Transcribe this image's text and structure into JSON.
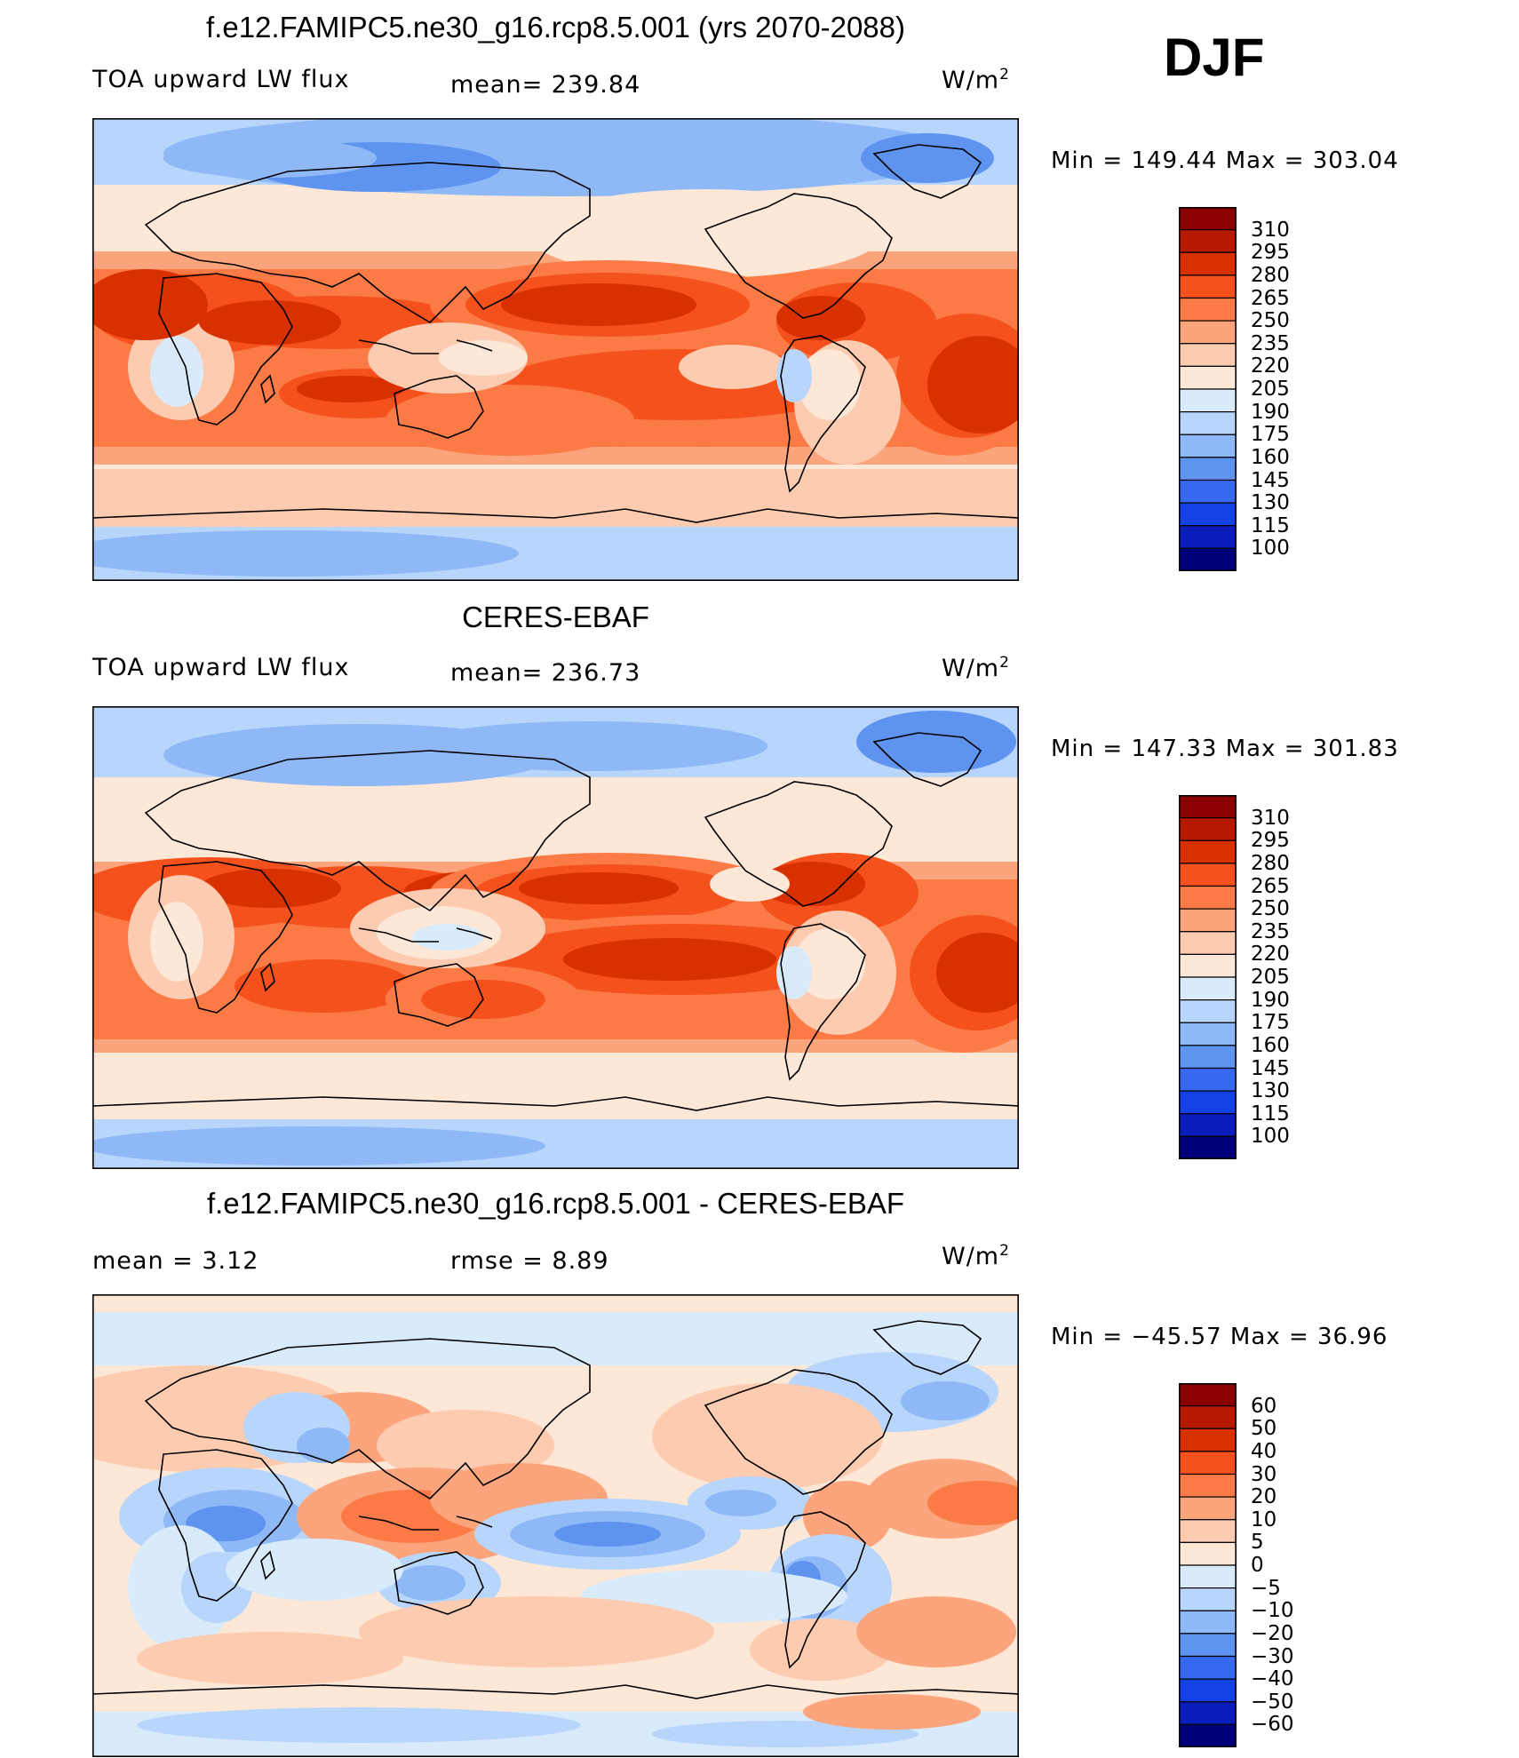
{
  "season": "DJF",
  "panels": [
    {
      "title": "f.e12.FAMIPC5.ne30_g16.rcp8.5.001 (yrs 2070-2088)",
      "left_label": "TOA upward LW flux",
      "center_label": "mean=  239.84",
      "units_base": "W/m",
      "units_exp": "2",
      "minmax": "Min  =  149.44  Max  =  303.04"
    },
    {
      "title": "CERES-EBAF",
      "left_label": "TOA upward LW flux",
      "center_label": "mean=  236.73",
      "units_base": "W/m",
      "units_exp": "2",
      "minmax": "Min  =  147.33  Max  =  301.83"
    },
    {
      "title": "f.e12.FAMIPC5.ne30_g16.rcp8.5.001 - CERES-EBAF",
      "left_label": "mean  =     3.12",
      "center_label": "rmse  =     8.89",
      "units_base": "W/m",
      "units_exp": "2",
      "minmax": "Min  =  −45.57  Max  =    36.96"
    }
  ],
  "colorbars": [
    {
      "labels": [
        "310",
        "295",
        "280",
        "265",
        "250",
        "235",
        "220",
        "205",
        "190",
        "175",
        "160",
        "145",
        "130",
        "115",
        "100"
      ],
      "colors": [
        "#8b0000",
        "#b51a00",
        "#d93000",
        "#f5511c",
        "#fb7a45",
        "#fca57c",
        "#fdcbb0",
        "#fde8d8",
        "#d9ebfb",
        "#b8d6fb",
        "#8fb8f7",
        "#5f93f0",
        "#3668f0",
        "#1441e3",
        "#0a1dbb",
        "#00007a"
      ]
    },
    {
      "labels": [
        "310",
        "295",
        "280",
        "265",
        "250",
        "235",
        "220",
        "205",
        "190",
        "175",
        "160",
        "145",
        "130",
        "115",
        "100"
      ],
      "colors": [
        "#8b0000",
        "#b51a00",
        "#d93000",
        "#f5511c",
        "#fb7a45",
        "#fca57c",
        "#fdcbb0",
        "#fde8d8",
        "#d9ebfb",
        "#b8d6fb",
        "#8fb8f7",
        "#5f93f0",
        "#3668f0",
        "#1441e3",
        "#0a1dbb",
        "#00007a"
      ]
    },
    {
      "labels": [
        "60",
        "50",
        "40",
        "30",
        "20",
        "10",
        "5",
        "0",
        "−5",
        "−10",
        "−20",
        "−30",
        "−40",
        "−50",
        "−60"
      ],
      "colors": [
        "#8b0000",
        "#b51a00",
        "#d93000",
        "#f5511c",
        "#fb7a45",
        "#fca57c",
        "#fdcbb0",
        "#fde8d8",
        "#d9ebfb",
        "#b8d6fb",
        "#8fb8f7",
        "#5f93f0",
        "#3668f0",
        "#1441e3",
        "#0a1dbb",
        "#00007a"
      ]
    }
  ],
  "chart_data": [
    {
      "type": "heatmap",
      "title": "f.e12.FAMIPC5.ne30_g16.rcp8.5.001 (yrs 2070-2088)",
      "variable": "TOA upward LW flux",
      "units": "W/m2",
      "mean": 239.84,
      "min": 149.44,
      "max": 303.04,
      "contour_levels": [
        100,
        115,
        130,
        145,
        160,
        175,
        190,
        205,
        220,
        235,
        250,
        265,
        280,
        295,
        310
      ]
    },
    {
      "type": "heatmap",
      "title": "CERES-EBAF",
      "variable": "TOA upward LW flux",
      "units": "W/m2",
      "mean": 236.73,
      "min": 147.33,
      "max": 301.83,
      "contour_levels": [
        100,
        115,
        130,
        145,
        160,
        175,
        190,
        205,
        220,
        235,
        250,
        265,
        280,
        295,
        310
      ]
    },
    {
      "type": "heatmap",
      "title": "f.e12.FAMIPC5.ne30_g16.rcp8.5.001 - CERES-EBAF",
      "units": "W/m2",
      "mean": 3.12,
      "rmse": 8.89,
      "min": -45.57,
      "max": 36.96,
      "contour_levels": [
        -60,
        -50,
        -40,
        -30,
        -20,
        -10,
        -5,
        0,
        5,
        10,
        20,
        30,
        40,
        50,
        60
      ]
    }
  ]
}
